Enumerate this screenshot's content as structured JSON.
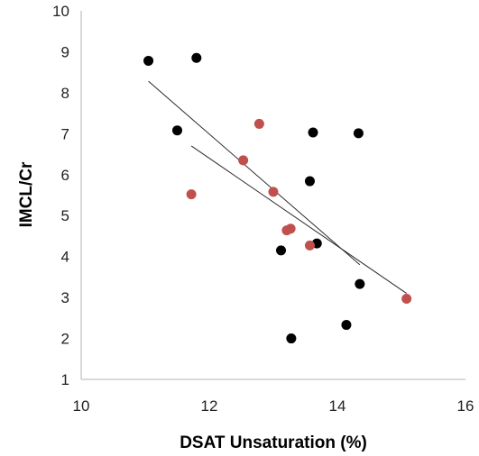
{
  "chart_data": {
    "type": "scatter",
    "title": "",
    "xlabel": "DSAT Unsaturation (%)",
    "ylabel": "IMCL/Cr",
    "xlim": [
      10,
      16
    ],
    "ylim": [
      1,
      10
    ],
    "xticks": [
      "10",
      "12",
      "14",
      "16"
    ],
    "yticks": [
      "1",
      "2",
      "3",
      "4",
      "5",
      "6",
      "7",
      "8",
      "9",
      "10"
    ],
    "grid": false,
    "legend": "none",
    "series": [
      {
        "color": "#000000",
        "points": [
          {
            "x": 11.05,
            "y": 8.78
          },
          {
            "x": 11.8,
            "y": 8.85
          },
          {
            "x": 11.5,
            "y": 7.08
          },
          {
            "x": 13.62,
            "y": 7.03
          },
          {
            "x": 14.33,
            "y": 7.01
          },
          {
            "x": 13.57,
            "y": 5.84
          },
          {
            "x": 13.68,
            "y": 4.32
          },
          {
            "x": 13.12,
            "y": 4.15
          },
          {
            "x": 14.35,
            "y": 3.33
          },
          {
            "x": 14.14,
            "y": 2.33
          },
          {
            "x": 13.28,
            "y": 2.0
          }
        ],
        "trendline": {
          "x": [
            11.05,
            14.35
          ],
          "y": [
            8.28,
            3.8
          ]
        }
      },
      {
        "color": "#c0504d",
        "points": [
          {
            "x": 12.78,
            "y": 7.24
          },
          {
            "x": 12.53,
            "y": 6.35
          },
          {
            "x": 11.72,
            "y": 5.52
          },
          {
            "x": 13.0,
            "y": 5.58
          },
          {
            "x": 13.21,
            "y": 4.64
          },
          {
            "x": 13.27,
            "y": 4.68
          },
          {
            "x": 13.57,
            "y": 4.27
          },
          {
            "x": 15.08,
            "y": 2.97
          }
        ],
        "trendline": {
          "x": [
            11.72,
            15.08
          ],
          "y": [
            6.7,
            3.1
          ]
        }
      }
    ]
  }
}
